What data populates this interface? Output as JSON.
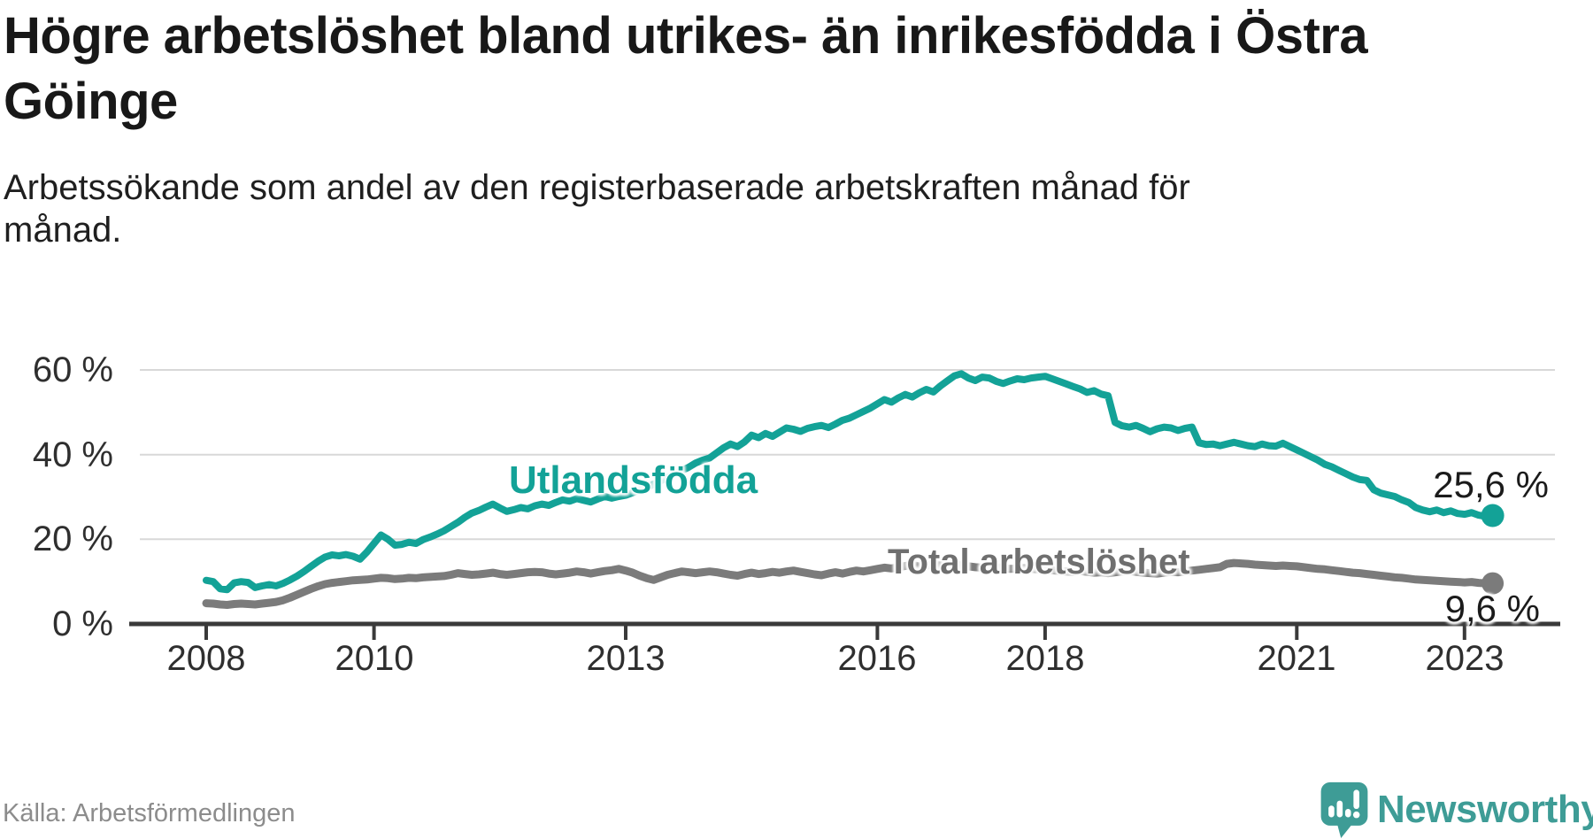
{
  "header": {
    "title": "Högre arbetslöshet bland utrikes- än inrikesfödda i Östra Göinge",
    "subtitle": "Arbetssökande som andel av den registerbaserade arbetskraften månad för månad."
  },
  "colors": {
    "accent_teal": "#13a297",
    "series_gray": "#7b7b7b",
    "axis_dark": "#3a3a3a",
    "gridline": "#d8d8d8",
    "brand_teal": "#3e9c96"
  },
  "chart_data": {
    "type": "line",
    "unit": "%",
    "x_range": {
      "start": "2008-01",
      "end": "2023-05",
      "frequency": "monthly"
    },
    "ylim": [
      0,
      62
    ],
    "grid": "horizontal",
    "legend_position": "inline-labels",
    "y_tick_labels": [
      "60 %",
      "40 %",
      "20 %",
      "0 %"
    ],
    "x_tick_labels": [
      "2008",
      "2010",
      "2013",
      "2016",
      "2018",
      "2021",
      "2023"
    ],
    "series": [
      {
        "name": "Utlandsfödda",
        "color": "#13a297",
        "end_label": "25,6 %",
        "end_value": 25.6,
        "values": [
          10.3,
          10.0,
          8.3,
          8.1,
          9.7,
          10.0,
          9.8,
          8.6,
          9.0,
          9.3,
          9.0,
          9.6,
          10.4,
          11.3,
          12.4,
          13.6,
          14.8,
          15.8,
          16.3,
          16.1,
          16.4,
          16.0,
          15.3,
          17.0,
          19.0,
          21.0,
          20.0,
          18.6,
          18.8,
          19.3,
          19.0,
          19.9,
          20.5,
          21.2,
          22.0,
          23.0,
          24.0,
          25.2,
          26.2,
          26.8,
          27.6,
          28.3,
          27.4,
          26.6,
          27.0,
          27.5,
          27.2,
          27.9,
          28.3,
          28.0,
          28.7,
          29.3,
          29.0,
          29.6,
          29.2,
          28.8,
          29.5,
          30.1,
          29.7,
          30.1,
          30.4,
          31.0,
          31.7,
          32.3,
          33.0,
          33.8,
          34.6,
          35.4,
          36.2,
          37.0,
          38.0,
          38.7,
          39.2,
          40.4,
          41.6,
          42.5,
          41.9,
          43.0,
          44.6,
          44.0,
          45.0,
          44.3,
          45.3,
          46.3,
          46.0,
          45.5,
          46.2,
          46.6,
          46.9,
          46.4,
          47.2,
          48.1,
          48.6,
          49.4,
          50.2,
          51.0,
          52.0,
          53.0,
          52.4,
          53.4,
          54.2,
          53.6,
          54.6,
          55.4,
          54.8,
          56.2,
          57.4,
          58.6,
          59.1,
          58.1,
          57.5,
          58.3,
          58.1,
          57.3,
          56.8,
          57.4,
          57.9,
          57.7,
          58.1,
          58.3,
          58.5,
          57.9,
          57.3,
          56.7,
          56.1,
          55.5,
          54.7,
          55.1,
          54.3,
          53.9,
          47.6,
          46.8,
          46.5,
          46.9,
          46.2,
          45.4,
          46.1,
          46.5,
          46.3,
          45.7,
          46.2,
          46.5,
          42.8,
          42.4,
          42.5,
          42.1,
          42.5,
          42.9,
          42.5,
          42.1,
          41.9,
          42.5,
          42.1,
          42.0,
          42.7,
          41.9,
          41.1,
          40.3,
          39.5,
          38.7,
          37.7,
          37.1,
          36.3,
          35.5,
          34.7,
          34.1,
          33.9,
          31.7,
          30.9,
          30.5,
          30.1,
          29.3,
          28.7,
          27.5,
          26.9,
          26.5,
          26.9,
          26.3,
          26.7,
          26.1,
          25.9,
          26.3,
          25.7,
          25.4,
          25.6
        ]
      },
      {
        "name": "Total arbetslöshet",
        "color": "#7b7b7b",
        "end_label": "9,6 %",
        "end_value": 9.6,
        "values": [
          4.9,
          4.8,
          4.6,
          4.5,
          4.7,
          4.8,
          4.7,
          4.6,
          4.8,
          5.0,
          5.2,
          5.6,
          6.2,
          6.9,
          7.6,
          8.3,
          8.9,
          9.4,
          9.7,
          9.9,
          10.1,
          10.3,
          10.4,
          10.5,
          10.7,
          10.9,
          10.8,
          10.6,
          10.7,
          10.9,
          10.8,
          11.0,
          11.1,
          11.2,
          11.3,
          11.6,
          12.0,
          11.8,
          11.6,
          11.7,
          11.9,
          12.1,
          11.8,
          11.6,
          11.8,
          12.0,
          12.2,
          12.3,
          12.2,
          11.9,
          11.7,
          11.9,
          12.1,
          12.4,
          12.2,
          11.9,
          12.2,
          12.5,
          12.7,
          13.0,
          12.6,
          12.1,
          11.4,
          10.8,
          10.4,
          11.0,
          11.6,
          12.0,
          12.4,
          12.2,
          12.0,
          12.2,
          12.4,
          12.2,
          11.9,
          11.6,
          11.4,
          11.8,
          12.1,
          11.8,
          12.0,
          12.3,
          12.1,
          12.4,
          12.6,
          12.3,
          12.0,
          11.7,
          11.5,
          11.9,
          12.2,
          11.9,
          12.3,
          12.6,
          12.4,
          12.7,
          13.0,
          13.3,
          13.1,
          13.4,
          13.7,
          13.9,
          13.6,
          13.8,
          14.0,
          13.8,
          13.9,
          14.0,
          13.8,
          13.6,
          13.4,
          13.3,
          13.2,
          13.4,
          13.2,
          13.0,
          13.1,
          13.2,
          13.0,
          12.9,
          12.8,
          12.7,
          12.5,
          12.4,
          12.3,
          12.5,
          12.3,
          12.1,
          12.2,
          12.0,
          12.2,
          12.4,
          12.5,
          12.3,
          12.1,
          12.0,
          11.9,
          12.1,
          12.3,
          12.2,
          12.4,
          12.6,
          12.8,
          13.0,
          13.2,
          13.4,
          14.2,
          14.4,
          14.3,
          14.2,
          14.0,
          13.9,
          13.8,
          13.7,
          13.8,
          13.7,
          13.6,
          13.4,
          13.2,
          13.0,
          12.9,
          12.7,
          12.5,
          12.3,
          12.1,
          12.0,
          11.8,
          11.6,
          11.4,
          11.2,
          11.0,
          10.9,
          10.7,
          10.5,
          10.4,
          10.3,
          10.2,
          10.1,
          10.0,
          9.9,
          9.8,
          9.9,
          9.7,
          9.6,
          9.6
        ]
      }
    ]
  },
  "footer": {
    "source": "Källa: Arbetsförmedlingen",
    "brand": "Newsworthy"
  }
}
